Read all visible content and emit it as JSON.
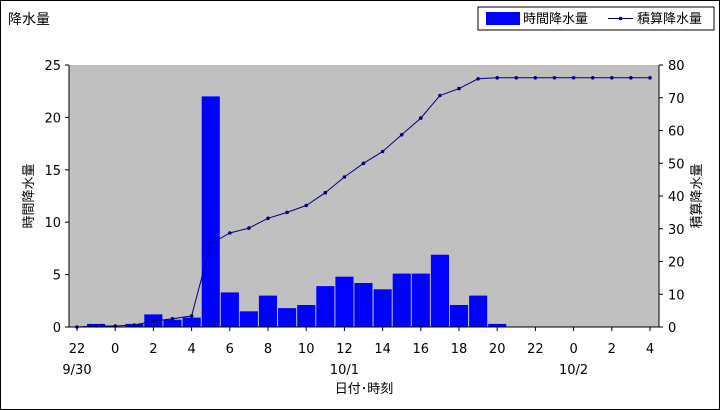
{
  "chart_data": {
    "type": "bar",
    "title": "降水量",
    "xlabel": "日付･時刻",
    "ylabel_left": "時間降水量",
    "ylabel_right": "積算降水量",
    "ylim_left": [
      0,
      25
    ],
    "ylim_right": [
      0,
      80
    ],
    "yticks_left": [
      "0",
      "5",
      "10",
      "15",
      "20",
      "25"
    ],
    "yticks_right": [
      "0",
      "10",
      "20",
      "30",
      "40",
      "50",
      "60",
      "70",
      "80"
    ],
    "xtick_labels": [
      "22",
      "0",
      "2",
      "4",
      "6",
      "8",
      "10",
      "12",
      "14",
      "16",
      "18",
      "20",
      "22",
      "0",
      "2",
      "4"
    ],
    "date_labels": [
      "9/30",
      "10/1",
      "10/2"
    ],
    "grid": false,
    "legend_position": "top-right",
    "colors": {
      "bar": "#0000ff",
      "line": "#000080",
      "plot_bg": "#c0c0c0"
    },
    "x": [
      "22",
      "23",
      "0",
      "1",
      "2",
      "3",
      "4",
      "5",
      "6",
      "7",
      "8",
      "9",
      "10",
      "11",
      "12",
      "13",
      "14",
      "15",
      "16",
      "17",
      "18",
      "19",
      "20",
      "21",
      "22",
      "23",
      "0",
      "1",
      "2",
      "3",
      "4"
    ],
    "series": [
      {
        "name": "時間降水量",
        "kind": "bar",
        "values": [
          0,
          0.3,
          0,
          0.3,
          1.2,
          0.7,
          0.9,
          22,
          3.3,
          1.5,
          3,
          1.8,
          2.1,
          3.9,
          4.8,
          4.2,
          3.6,
          5.1,
          5.1,
          6.9,
          2.1,
          3,
          0.3,
          0,
          0,
          0,
          0,
          0,
          0,
          0,
          0
        ]
      },
      {
        "name": "積算降水量",
        "kind": "line",
        "values": [
          0,
          0.3,
          0.3,
          0.6,
          1.8,
          2.5,
          3.4,
          25.4,
          28.7,
          30.2,
          33.2,
          35,
          37.1,
          41,
          45.8,
          50,
          53.6,
          58.7,
          63.8,
          70.7,
          72.8,
          75.8,
          76.1,
          76.1,
          76.1,
          76.1,
          76.1,
          76.1,
          76.1,
          76.1,
          76.1
        ]
      }
    ]
  }
}
